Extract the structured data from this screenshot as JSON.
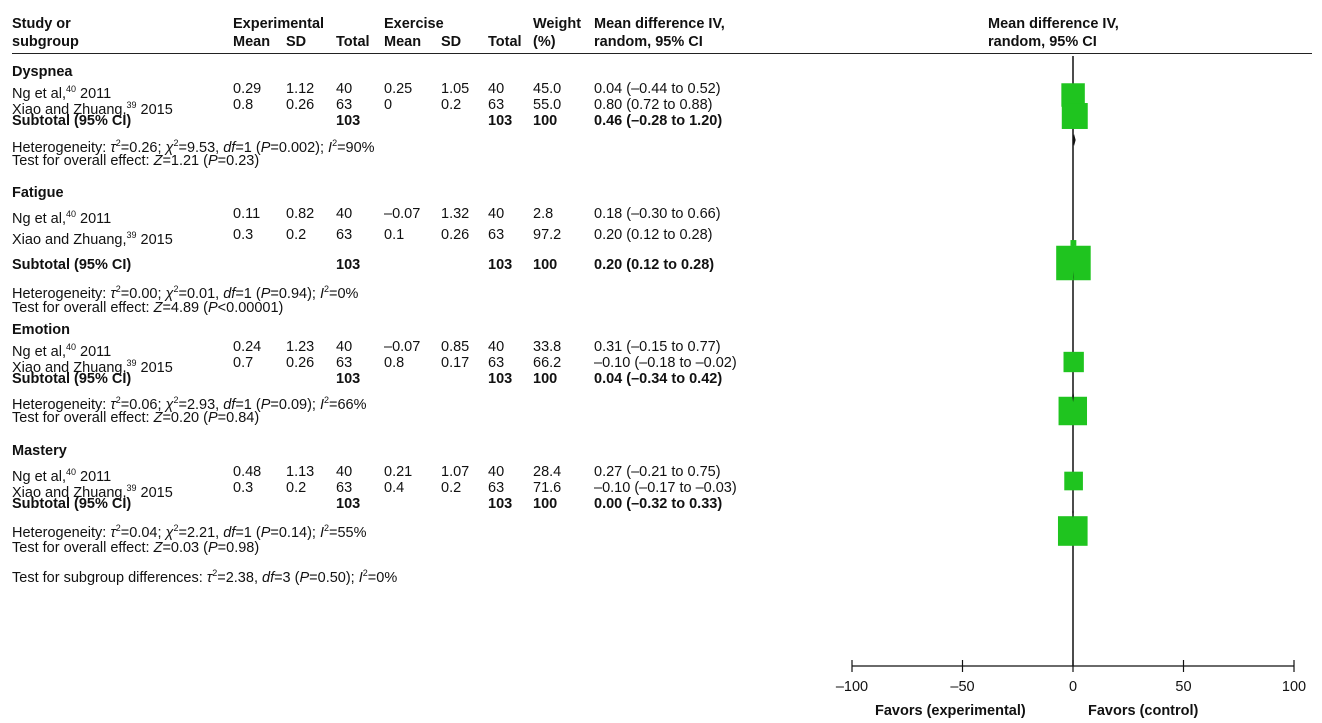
{
  "header": {
    "study_l1": "Study or",
    "study_l2": "subgroup",
    "experimental": "Experimental",
    "exercise": "Exercise",
    "mean": "Mean",
    "sd": "SD",
    "total": "Total",
    "weight_l1": "Weight",
    "weight_l2": "(%)",
    "md_l1": "Mean difference IV,",
    "md_l2": "random, 95% CI",
    "plot_l1": "Mean difference IV,",
    "plot_l2": "random, 95% CI"
  },
  "groups": [
    {
      "name": "Dyspnea",
      "studies": [
        {
          "label": "Ng et al,",
          "ref": "40",
          "year": " 2011",
          "e_mean": "0.29",
          "e_sd": "1.12",
          "e_total": "40",
          "c_mean": "0.25",
          "c_sd": "1.05",
          "c_total": "40",
          "weight": "45.0",
          "ci": "0.04 (–0.44 to 0.52)"
        },
        {
          "label": "Xiao and Zhuang,",
          "ref": "39",
          "year": " 2015",
          "e_mean": "0.8",
          "e_sd": "0.26",
          "e_total": "63",
          "c_mean": "0",
          "c_sd": "0.2",
          "c_total": "63",
          "weight": "55.0",
          "ci": "0.80 (0.72 to 0.88)"
        }
      ],
      "subtotal": {
        "label": "Subtotal (95% CI)",
        "e_total": "103",
        "c_total": "103",
        "weight": "100",
        "ci": "0.46 (–0.28 to 1.20)"
      },
      "heterogeneity": {
        "prefix": "Heterogeneity: ",
        "tau": "τ",
        "tau_val": "=0.26; ",
        "chi": "χ",
        "chi_val": "=9.53, ",
        "df": "df",
        "df_val": "=1 (",
        "p": "P",
        "p_val": "=0.002); ",
        "i": "I",
        "i_val": "=90%"
      },
      "overall": {
        "prefix": "Test for overall effect: ",
        "z": "Z",
        "z_val": "=1.21 (",
        "p": "P",
        "p_val": "=0.23)"
      }
    },
    {
      "name": "Fatigue",
      "studies": [
        {
          "label": "Ng et al,",
          "ref": "40",
          "year": " 2011",
          "e_mean": "0.11",
          "e_sd": "0.82",
          "e_total": "40",
          "c_mean": "–0.07",
          "c_sd": "1.32",
          "c_total": "40",
          "weight": "2.8",
          "ci": "0.18 (–0.30 to 0.66)"
        },
        {
          "label": "Xiao and Zhuang,",
          "ref": "39",
          "year": " 2015",
          "e_mean": "0.3",
          "e_sd": "0.2",
          "e_total": "63",
          "c_mean": "0.1",
          "c_sd": "0.26",
          "c_total": "63",
          "weight": "97.2",
          "ci": "0.20 (0.12 to 0.28)"
        }
      ],
      "subtotal": {
        "label": "Subtotal (95% CI)",
        "e_total": "103",
        "c_total": "103",
        "weight": "100",
        "ci": "0.20 (0.12 to 0.28)"
      },
      "heterogeneity": {
        "prefix": "Heterogeneity: ",
        "tau": "τ",
        "tau_val": "=0.00; ",
        "chi": "χ",
        "chi_val": "=0.01, ",
        "df": "df",
        "df_val": "=1 (",
        "p": "P",
        "p_val": "=0.94); ",
        "i": "I",
        "i_val": "=0%"
      },
      "overall": {
        "prefix": "Test for overall effect: ",
        "z": "Z",
        "z_val": "=4.89 (",
        "p": "P",
        "p_val": "<0.00001)"
      }
    },
    {
      "name": "Emotion",
      "studies": [
        {
          "label": "Ng et al,",
          "ref": "40",
          "year": " 2011",
          "e_mean": "0.24",
          "e_sd": "1.23",
          "e_total": "40",
          "c_mean": "–0.07",
          "c_sd": "0.85",
          "c_total": "40",
          "weight": "33.8",
          "ci": "0.31 (–0.15 to 0.77)"
        },
        {
          "label": "Xiao and Zhuang,",
          "ref": "39",
          "year": " 2015",
          "e_mean": "0.7",
          "e_sd": "0.26",
          "e_total": "63",
          "c_mean": "0.8",
          "c_sd": "0.17",
          "c_total": "63",
          "weight": "66.2",
          "ci": "–0.10 (–0.18 to –0.02)"
        }
      ],
      "subtotal": {
        "label": "Subtotal (95% CI)",
        "e_total": "103",
        "c_total": "103",
        "weight": "100",
        "ci": "0.04 (–0.34 to 0.42)"
      },
      "heterogeneity": {
        "prefix": "Heterogeneity: ",
        "tau": "τ",
        "tau_val": "=0.06; ",
        "chi": "χ",
        "chi_val": "=2.93, ",
        "df": "df",
        "df_val": "=1 (",
        "p": "P",
        "p_val": "=0.09); ",
        "i": "I",
        "i_val": "=66%"
      },
      "overall": {
        "prefix": "Test for overall effect: ",
        "z": "Z",
        "z_val": "=0.20 (",
        "p": "P",
        "p_val": "=0.84)"
      }
    },
    {
      "name": "Mastery",
      "studies": [
        {
          "label": "Ng et al,",
          "ref": "40",
          "year": " 2011",
          "e_mean": "0.48",
          "e_sd": "1.13",
          "e_total": "40",
          "c_mean": "0.21",
          "c_sd": "1.07",
          "c_total": "40",
          "weight": "28.4",
          "ci": "0.27 (–0.21 to 0.75)"
        },
        {
          "label": "Xiao and Zhuang,",
          "ref": "39",
          "year": " 2015",
          "e_mean": "0.3",
          "e_sd": "0.2",
          "e_total": "63",
          "c_mean": "0.4",
          "c_sd": "0.2",
          "c_total": "63",
          "weight": "71.6",
          "ci": "–0.10 (–0.17 to –0.03)"
        }
      ],
      "subtotal": {
        "label": "Subtotal (95% CI)",
        "e_total": "103",
        "c_total": "103",
        "weight": "100",
        "ci": "0.00 (–0.32 to 0.33)"
      },
      "heterogeneity": {
        "prefix": "Heterogeneity: ",
        "tau": "τ",
        "tau_val": "=0.04; ",
        "chi": "χ",
        "chi_val": "=2.21, ",
        "df": "df",
        "df_val": "=1 (",
        "p": "P",
        "p_val": "=0.14); ",
        "i": "I",
        "i_val": "=55%"
      },
      "overall": {
        "prefix": "Test for overall effect: ",
        "z": "Z",
        "z_val": "=0.03 (",
        "p": "P",
        "p_val": "=0.98)"
      }
    }
  ],
  "subgroup_test": {
    "prefix": "Test for subgroup differences: ",
    "tau": "τ",
    "tau_val": "=2.38, ",
    "df": "df",
    "df_val": "=3 (",
    "p": "P",
    "p_val": "=0.50); ",
    "i": "I",
    "i_val": "=0%"
  },
  "sup2": "2",
  "favors_left": "Favors (experimental)",
  "favors_right": "Favors (control)",
  "colors": {
    "marker": "#1fc41f",
    "line": "#111111"
  },
  "chart_data": {
    "type": "forest",
    "xlim": [
      -100,
      100
    ],
    "xticks": [
      -100,
      -50,
      0,
      50,
      100
    ],
    "xtick_labels": [
      "–100",
      "–50",
      "0",
      "50",
      "100"
    ],
    "null_line": 0,
    "subgroups": [
      {
        "name": "Dyspnea",
        "studies": [
          {
            "label": "Ng et al, 2011",
            "md": 0.04,
            "lo": -0.44,
            "hi": 0.52,
            "weight": 45.0
          },
          {
            "label": "Xiao and Zhuang, 2015",
            "md": 0.8,
            "lo": 0.72,
            "hi": 0.88,
            "weight": 55.0
          }
        ],
        "subtotal": {
          "md": 0.46,
          "lo": -0.28,
          "hi": 1.2
        }
      },
      {
        "name": "Fatigue",
        "studies": [
          {
            "label": "Ng et al, 2011",
            "md": 0.18,
            "lo": -0.3,
            "hi": 0.66,
            "weight": 2.8
          },
          {
            "label": "Xiao and Zhuang, 2015",
            "md": 0.2,
            "lo": 0.12,
            "hi": 0.28,
            "weight": 97.2
          }
        ],
        "subtotal": {
          "md": 0.2,
          "lo": 0.12,
          "hi": 0.28
        }
      },
      {
        "name": "Emotion",
        "studies": [
          {
            "label": "Ng et al, 2011",
            "md": 0.31,
            "lo": -0.15,
            "hi": 0.77,
            "weight": 33.8
          },
          {
            "label": "Xiao and Zhuang, 2015",
            "md": -0.1,
            "lo": -0.18,
            "hi": -0.02,
            "weight": 66.2
          }
        ],
        "subtotal": {
          "md": 0.04,
          "lo": -0.34,
          "hi": 0.42
        }
      },
      {
        "name": "Mastery",
        "studies": [
          {
            "label": "Ng et al, 2011",
            "md": 0.27,
            "lo": -0.21,
            "hi": 0.75,
            "weight": 28.4
          },
          {
            "label": "Xiao and Zhuang, 2015",
            "md": -0.1,
            "lo": -0.17,
            "hi": -0.03,
            "weight": 71.6
          }
        ],
        "subtotal": {
          "md": 0.0,
          "lo": -0.32,
          "hi": 0.33
        }
      }
    ]
  }
}
